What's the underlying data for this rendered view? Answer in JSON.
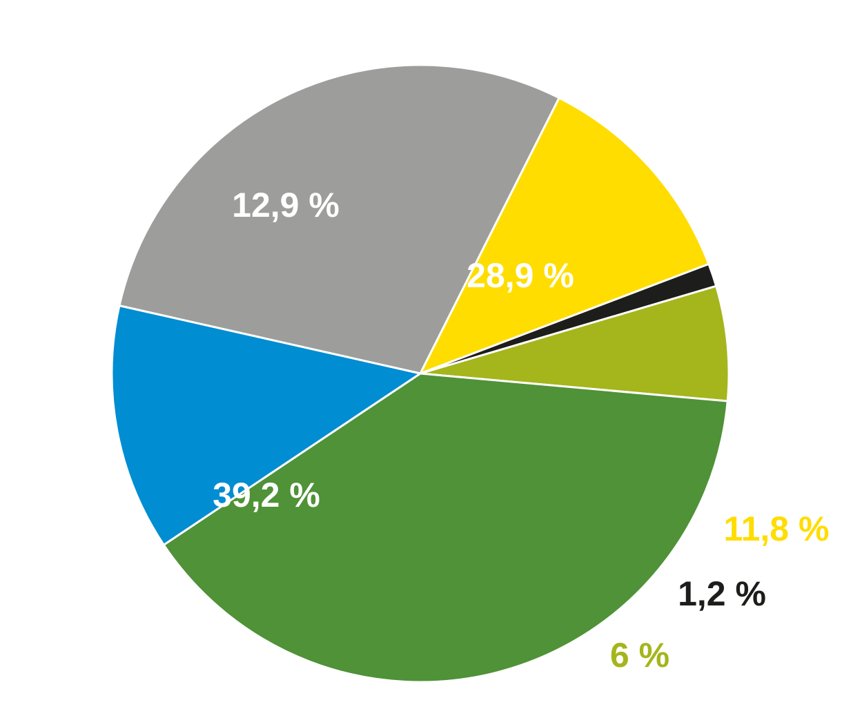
{
  "chart_data": {
    "type": "pie",
    "title": "",
    "start_angle_deg": 282.7,
    "direction": "clockwise",
    "slices": [
      {
        "label": "28,9 %",
        "value": 28.9,
        "color": "#9d9d9c",
        "label_color": "#ffffff",
        "label_position": "inside"
      },
      {
        "label": "11,8 %",
        "value": 11.8,
        "color": "#ffdd00",
        "label_color": "#ffdd00",
        "label_position": "outside"
      },
      {
        "label": "1,2 %",
        "value": 1.2,
        "color": "#1d1d1b",
        "label_color": "#1d1d1b",
        "label_position": "outside"
      },
      {
        "label": "6 %",
        "value": 6.0,
        "color": "#a5b51c",
        "label_color": "#a5b51c",
        "label_position": "outside"
      },
      {
        "label": "39,2 %",
        "value": 39.2,
        "color": "#4f9237",
        "label_color": "#ffffff",
        "label_position": "inside"
      },
      {
        "label": "12,9 %",
        "value": 12.9,
        "color": "#008dd2",
        "label_color": "#ffffff",
        "label_position": "inside"
      }
    ]
  }
}
